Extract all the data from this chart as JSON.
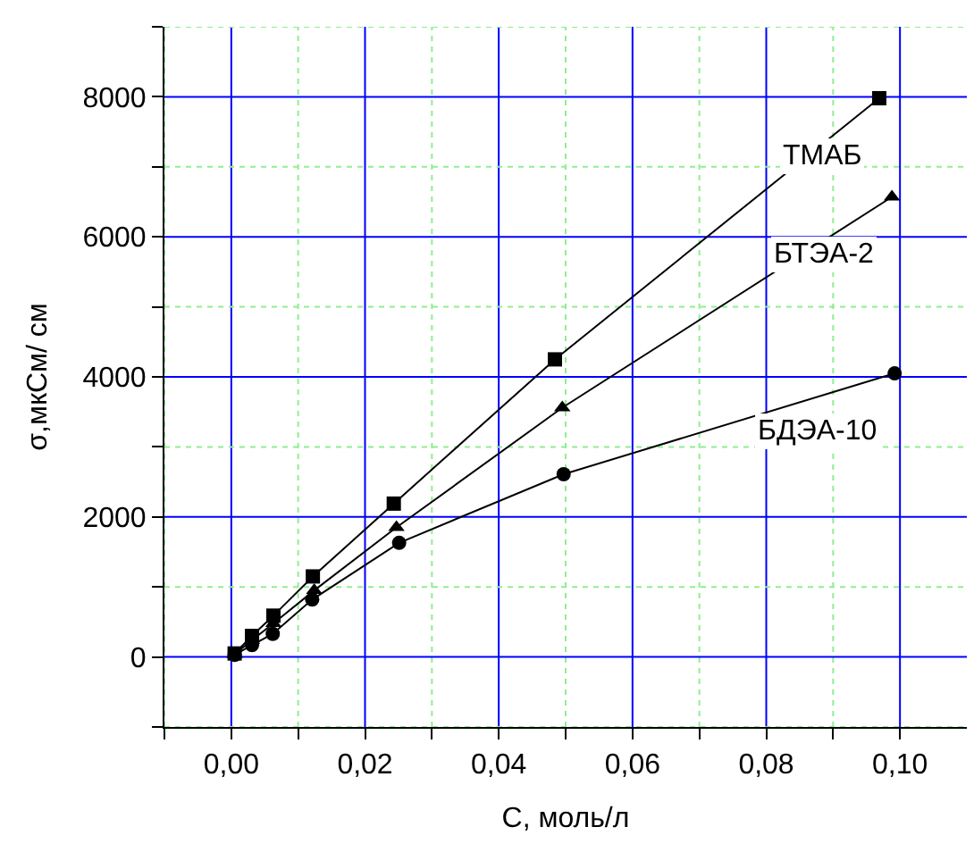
{
  "chart_data": {
    "type": "line",
    "xlabel": "C, моль/л",
    "ylabel": "σ,мкСм/ см",
    "series": [
      {
        "name": "ТМАБ",
        "color": "#000000",
        "marker": "square",
        "x": [
          0.0005,
          0.0031,
          0.0063,
          0.0122,
          0.0243,
          0.0484,
          0.0969
        ],
        "values": [
          50,
          300,
          590,
          1150,
          2190,
          4250,
          7980
        ]
      },
      {
        "name": "БТЭА-2",
        "color": "#000000",
        "marker": "triangle",
        "x": [
          0.0005,
          0.0031,
          0.0063,
          0.0124,
          0.0247,
          0.0495,
          0.0988
        ],
        "values": [
          40,
          240,
          480,
          950,
          1850,
          3560,
          6570
        ]
      },
      {
        "name": "БДЭА-10",
        "color": "#000000",
        "marker": "circle",
        "x": [
          0.0005,
          0.0031,
          0.0062,
          0.0121,
          0.0251,
          0.0497,
          0.0992
        ],
        "values": [
          30,
          170,
          330,
          820,
          1630,
          2610,
          4050
        ]
      }
    ],
    "xlim": [
      -0.01,
      0.11
    ],
    "ylim": [
      -1000,
      9000
    ],
    "xticks": [
      {
        "value": -0.01,
        "label": null
      },
      {
        "value": 0,
        "label": "0,00"
      },
      {
        "value": 0.01,
        "label": null
      },
      {
        "value": 0.02,
        "label": "0,02"
      },
      {
        "value": 0.03,
        "label": null
      },
      {
        "value": 0.04,
        "label": "0,04"
      },
      {
        "value": 0.05,
        "label": null
      },
      {
        "value": 0.06,
        "label": "0,06"
      },
      {
        "value": 0.07,
        "label": null
      },
      {
        "value": 0.08,
        "label": "0,08"
      },
      {
        "value": 0.09,
        "label": null
      },
      {
        "value": 0.1,
        "label": "0,10"
      }
    ],
    "yticks": [
      {
        "value": -1000,
        "label": null
      },
      0,
      {
        "value": 1000,
        "label": null
      },
      2000,
      {
        "value": 3000,
        "label": null
      },
      4000,
      {
        "value": 5000,
        "label": null
      },
      6000,
      {
        "value": 7000,
        "label": null
      },
      8000,
      {
        "value": 9000,
        "label": null
      }
    ],
    "grid": true,
    "line_style": "solid"
  }
}
